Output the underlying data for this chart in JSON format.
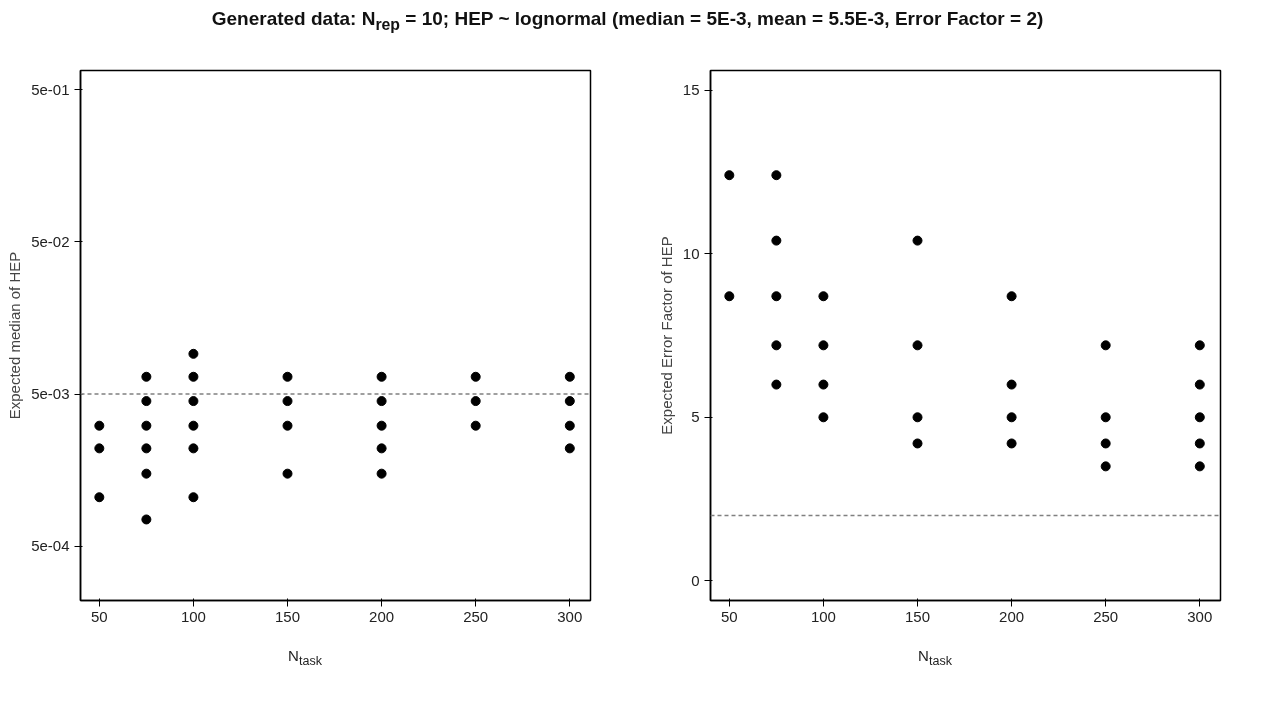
{
  "chart_data": [
    {
      "type": "scatter",
      "title": "Generated data: N$_{rep}$ = 10; HEP ~ lognormal (median = 5E-3, mean = 5.5E-3, Error Factor = 2)",
      "xlabel": "N$_{task}$",
      "ylabel": "Expected median of HEP",
      "log": "y",
      "grid": false,
      "marker": "circle",
      "xlim": [
        40,
        311
      ],
      "xticks": [
        50,
        100,
        150,
        200,
        250,
        300
      ],
      "ylim": [
        0.00022,
        0.67
      ],
      "yticks": [
        {
          "value": 0.0005,
          "label": "5e-04"
        },
        {
          "value": 0.005,
          "label": "5e-03"
        },
        {
          "value": 0.05,
          "label": "5e-02"
        },
        {
          "value": 0.5,
          "label": "5e-01"
        }
      ],
      "series": [
        {
          "color": "#000000",
          "x": [
            50,
            50,
            50,
            75,
            75,
            75,
            75,
            75,
            75,
            100,
            100,
            100,
            100,
            100,
            100,
            150,
            150,
            150,
            150,
            200,
            200,
            200,
            200,
            200,
            250,
            250,
            250,
            300,
            300,
            300,
            300
          ],
          "values": [
            0.0031,
            0.0022,
            0.00105,
            0.0065,
            0.0045,
            0.0031,
            0.0022,
            0.0015,
            0.00075,
            0.0092,
            0.0065,
            0.0045,
            0.0031,
            0.0022,
            0.00105,
            0.0065,
            0.0045,
            0.0031,
            0.0015,
            0.0065,
            0.0045,
            0.0031,
            0.0022,
            0.0015,
            0.0065,
            0.0045,
            0.0031,
            0.0065,
            0.0045,
            0.0031,
            0.0022
          ]
        }
      ],
      "ref_lines": [
        {
          "axis": "y",
          "value": 0.005,
          "color": "#808080",
          "line_style": "dashed"
        }
      ]
    },
    {
      "type": "scatter",
      "xlabel": "N$_{task}$",
      "ylabel": "Expected Error Factor of HEP",
      "grid": false,
      "marker": "circle",
      "xlim": [
        40,
        311
      ],
      "xticks": [
        50,
        100,
        150,
        200,
        250,
        300
      ],
      "ylim": [
        -0.6,
        15.6
      ],
      "yticks": [
        0,
        5,
        10,
        15
      ],
      "series": [
        {
          "color": "#000000",
          "x": [
            50,
            50,
            75,
            75,
            75,
            75,
            75,
            100,
            100,
            100,
            100,
            150,
            150,
            150,
            150,
            200,
            200,
            200,
            200,
            250,
            250,
            250,
            250,
            300,
            300,
            300,
            300,
            300
          ],
          "values": [
            12.4,
            8.7,
            12.4,
            10.4,
            8.7,
            7.2,
            6.0,
            8.7,
            7.2,
            6.0,
            5.0,
            10.4,
            7.2,
            5.0,
            4.2,
            8.7,
            6.0,
            5.0,
            4.2,
            7.2,
            5.0,
            4.2,
            3.5,
            7.2,
            6.0,
            5.0,
            4.2,
            3.5
          ]
        }
      ],
      "ref_lines": [
        {
          "axis": "y",
          "value": 2.0,
          "color": "#808080",
          "line_style": "dashed"
        }
      ]
    }
  ]
}
